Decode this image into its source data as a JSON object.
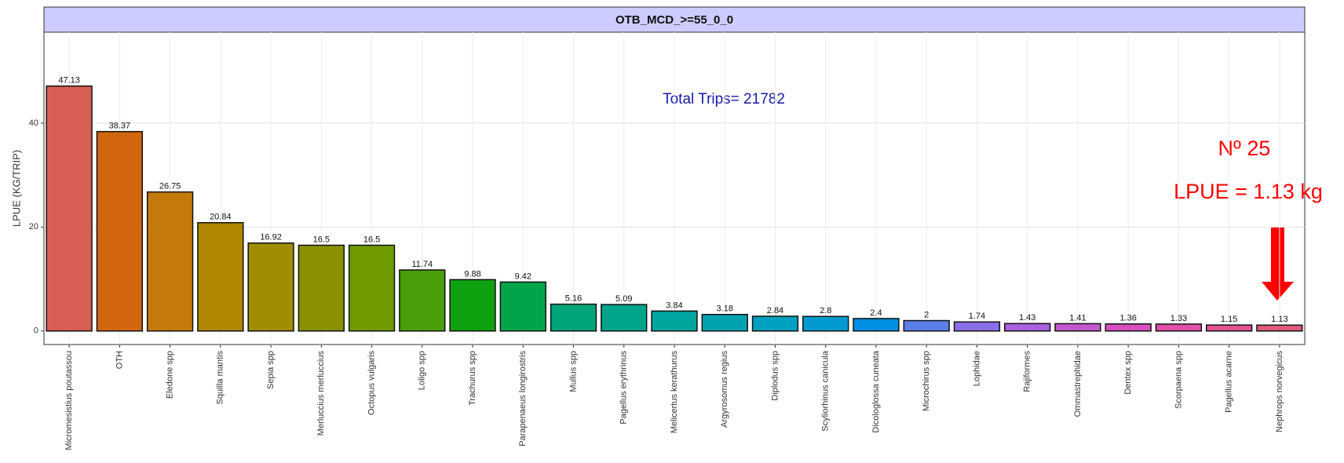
{
  "chart_data": {
    "type": "bar",
    "title": "OTB_MCD_>=55_0_0",
    "y_label": "LPUE (KG/TRIP)",
    "annotations": [
      "Total Trips= 21782",
      "Nº 25",
      "LPUE = 1.13 kg"
    ],
    "categories": [
      "Micromesistius poutassou",
      "OTH",
      "Eledone spp",
      "Squilla mantis",
      "Sepia spp",
      "Merluccius merluccius",
      "Octopus vulgaris",
      "Loligo spp",
      "Trachurus spp",
      "Parapenaeus longirostris",
      "Mullus spp",
      "Pagellus erythrinus",
      "Melicertus kerathurus",
      "Argyrosomus regius",
      "Diplodus spp",
      "Scyliorhinus canicula",
      "Dicologlossa cuneata",
      "Microchirus spp",
      "Lophidae",
      "Rajiformes",
      "Ommastrephidae",
      "Dentex spp",
      "Scorpaena spp",
      "Pagellus acarne",
      "Nephrops norvegicus"
    ],
    "values": [
      47.13,
      38.37,
      26.75,
      20.84,
      16.92,
      16.5,
      16.5,
      11.74,
      9.88,
      9.42,
      5.16,
      5.09,
      3.84,
      3.18,
      2.84,
      2.8,
      2.4,
      2,
      1.74,
      1.43,
      1.41,
      1.36,
      1.33,
      1.15,
      1.13
    ],
    "colors": [
      "#d95f55",
      "#d2660f",
      "#c47a0a",
      "#b08600",
      "#a08c00",
      "#8a9000",
      "#6f9a00",
      "#4a9e0a",
      "#0fa00f",
      "#00a54a",
      "#00a57a",
      "#00a58a",
      "#00a59e",
      "#00a2b0",
      "#00a0c0",
      "#009ad0",
      "#008ee0",
      "#5b7fe8",
      "#8a6ee8",
      "#aa60e0",
      "#c458d0",
      "#d850c0",
      "#e050a8",
      "#e05490",
      "#e05a78"
    ],
    "ylim": [
      -2.6,
      57.5
    ],
    "yticks": [
      0,
      20,
      40
    ],
    "grid": true
  }
}
